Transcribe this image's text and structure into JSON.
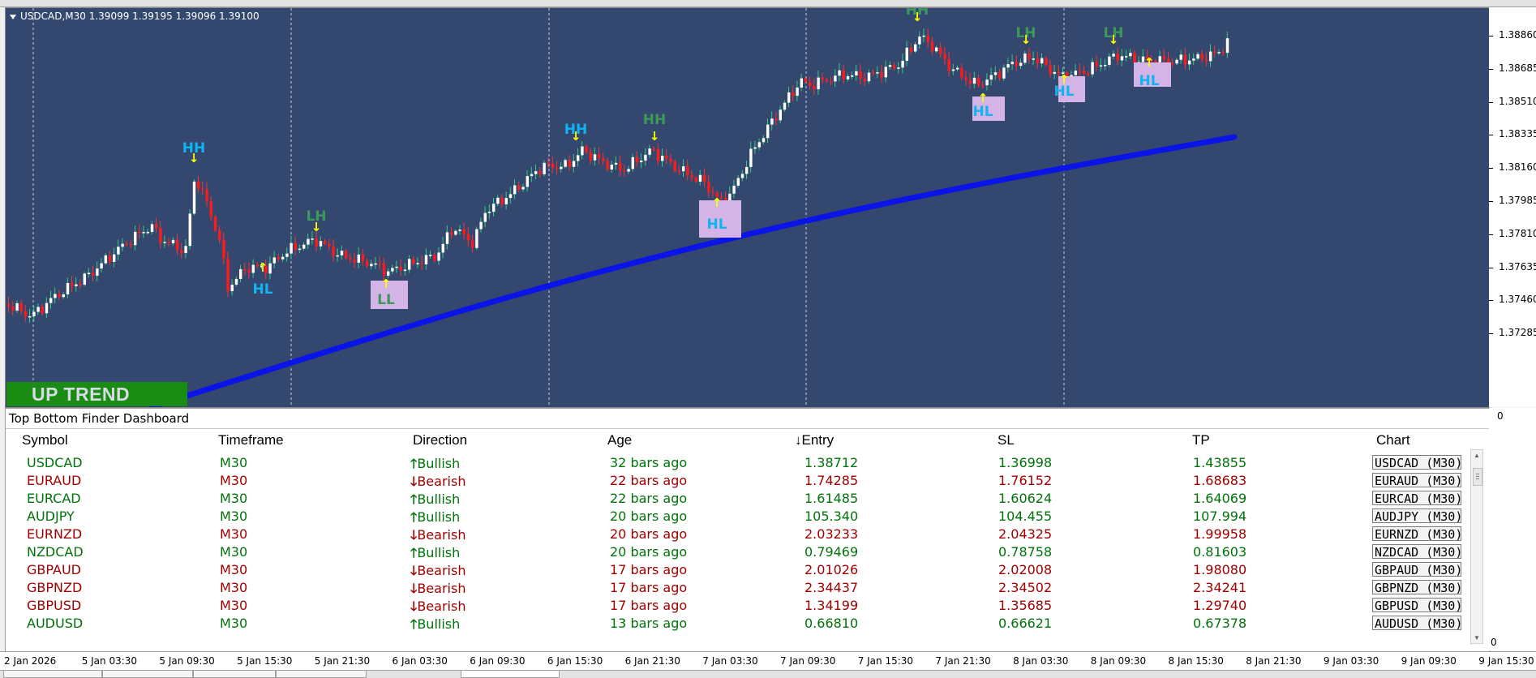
{
  "chart": {
    "header": "USDCAD,M30  1.39099 1.39195 1.39096 1.39100",
    "trend_badge": "UP TREND",
    "colors": {
      "background": "#34486f",
      "bull_candle": "#ffffff",
      "bear_candle": "#ff1a1a",
      "moving_average": "#0a14e6",
      "marker_box": "#d4b4e6",
      "arrow": "#ffff00",
      "hh_label": "#10b4f0",
      "hl_label": "#3a9a5a"
    },
    "markers": [
      {
        "label": "HH",
        "arrow": "down"
      },
      {
        "label": "LH",
        "arrow": "down"
      },
      {
        "label": "HL",
        "arrow": "up"
      },
      {
        "label": "LL",
        "arrow": "up"
      },
      {
        "label": "HH",
        "arrow": "down"
      },
      {
        "label": "HH",
        "arrow": "down"
      },
      {
        "label": "HL",
        "arrow": "up"
      },
      {
        "label": "HH",
        "arrow": "down"
      },
      {
        "label": "HL",
        "arrow": "up"
      },
      {
        "label": "LH",
        "arrow": "down"
      },
      {
        "label": "HL",
        "arrow": "up"
      },
      {
        "label": "LH",
        "arrow": "down"
      },
      {
        "label": "HL",
        "arrow": "up"
      }
    ]
  },
  "price_axis": {
    "ticks": [
      "1.38860",
      "1.38685",
      "1.38510",
      "1.38335",
      "1.38160",
      "1.37985",
      "1.37810",
      "1.37635",
      "1.37460",
      "1.37285"
    ],
    "dashboard_ticks": [
      "0",
      "0"
    ]
  },
  "time_axis": {
    "ticks": [
      "2 Jan 2026",
      "5 Jan 03:30",
      "5 Jan 09:30",
      "5 Jan 15:30",
      "5 Jan 21:30",
      "6 Jan 03:30",
      "6 Jan 09:30",
      "6 Jan 15:30",
      "6 Jan 21:30",
      "7 Jan 03:30",
      "7 Jan 09:30",
      "7 Jan 15:30",
      "7 Jan 21:30",
      "8 Jan 03:30",
      "8 Jan 09:30",
      "8 Jan 15:30",
      "8 Jan 21:30",
      "9 Jan 03:30",
      "9 Jan 09:30",
      "9 Jan 15:30"
    ]
  },
  "dashboard": {
    "title": "Top Bottom Finder Dashboard",
    "columns": {
      "symbol": "Symbol",
      "timeframe": "Timeframe",
      "direction": "Direction",
      "age": "Age",
      "entry": "↓Entry",
      "sl": "SL",
      "tp": "TP",
      "chart": "Chart"
    },
    "rows": [
      {
        "symbol": "USDCAD",
        "timeframe": "M30",
        "arrow": "🡑",
        "direction": "Bullish",
        "age": "32 bars ago",
        "entry": "1.38712",
        "sl": "1.36998",
        "tp": "1.43855",
        "chart": "USDCAD (M30)",
        "trend": "bull"
      },
      {
        "symbol": "EURAUD",
        "timeframe": "M30",
        "arrow": "🡓",
        "direction": "Bearish",
        "age": "22 bars ago",
        "entry": "1.74285",
        "sl": "1.76152",
        "tp": "1.68683",
        "chart": "EURAUD (M30)",
        "trend": "bear"
      },
      {
        "symbol": "EURCAD",
        "timeframe": "M30",
        "arrow": "🡑",
        "direction": "Bullish",
        "age": "22 bars ago",
        "entry": "1.61485",
        "sl": "1.60624",
        "tp": "1.64069",
        "chart": "EURCAD (M30)",
        "trend": "bull"
      },
      {
        "symbol": "AUDJPY",
        "timeframe": "M30",
        "arrow": "🡑",
        "direction": "Bullish",
        "age": "20 bars ago",
        "entry": "105.340",
        "sl": "104.455",
        "tp": "107.994",
        "chart": "AUDJPY (M30)",
        "trend": "bull"
      },
      {
        "symbol": "EURNZD",
        "timeframe": "M30",
        "arrow": "🡓",
        "direction": "Bearish",
        "age": "20 bars ago",
        "entry": "2.03233",
        "sl": "2.04325",
        "tp": "1.99958",
        "chart": "EURNZD (M30)",
        "trend": "bear"
      },
      {
        "symbol": "NZDCAD",
        "timeframe": "M30",
        "arrow": "🡑",
        "direction": "Bullish",
        "age": "20 bars ago",
        "entry": "0.79469",
        "sl": "0.78758",
        "tp": "0.81603",
        "chart": "NZDCAD (M30)",
        "trend": "bull"
      },
      {
        "symbol": "GBPAUD",
        "timeframe": "M30",
        "arrow": "🡓",
        "direction": "Bearish",
        "age": "17 bars ago",
        "entry": "2.01026",
        "sl": "2.02008",
        "tp": "1.98080",
        "chart": "GBPAUD (M30)",
        "trend": "bear"
      },
      {
        "symbol": "GBPNZD",
        "timeframe": "M30",
        "arrow": "🡓",
        "direction": "Bearish",
        "age": "17 bars ago",
        "entry": "2.34437",
        "sl": "2.34502",
        "tp": "2.34241",
        "chart": "GBPNZD (M30)",
        "trend": "bear"
      },
      {
        "symbol": "GBPUSD",
        "timeframe": "M30",
        "arrow": "🡓",
        "direction": "Bearish",
        "age": "17 bars ago",
        "entry": "1.34199",
        "sl": "1.35685",
        "tp": "1.29740",
        "chart": "GBPUSD (M30)",
        "trend": "bear"
      },
      {
        "symbol": "AUDUSD",
        "timeframe": "M30",
        "arrow": "🡑",
        "direction": "Bullish",
        "age": "13 bars ago",
        "entry": "0.66810",
        "sl": "0.66621",
        "tp": "0.67378",
        "chart": "AUDUSD (M30)",
        "trend": "bull"
      }
    ]
  }
}
